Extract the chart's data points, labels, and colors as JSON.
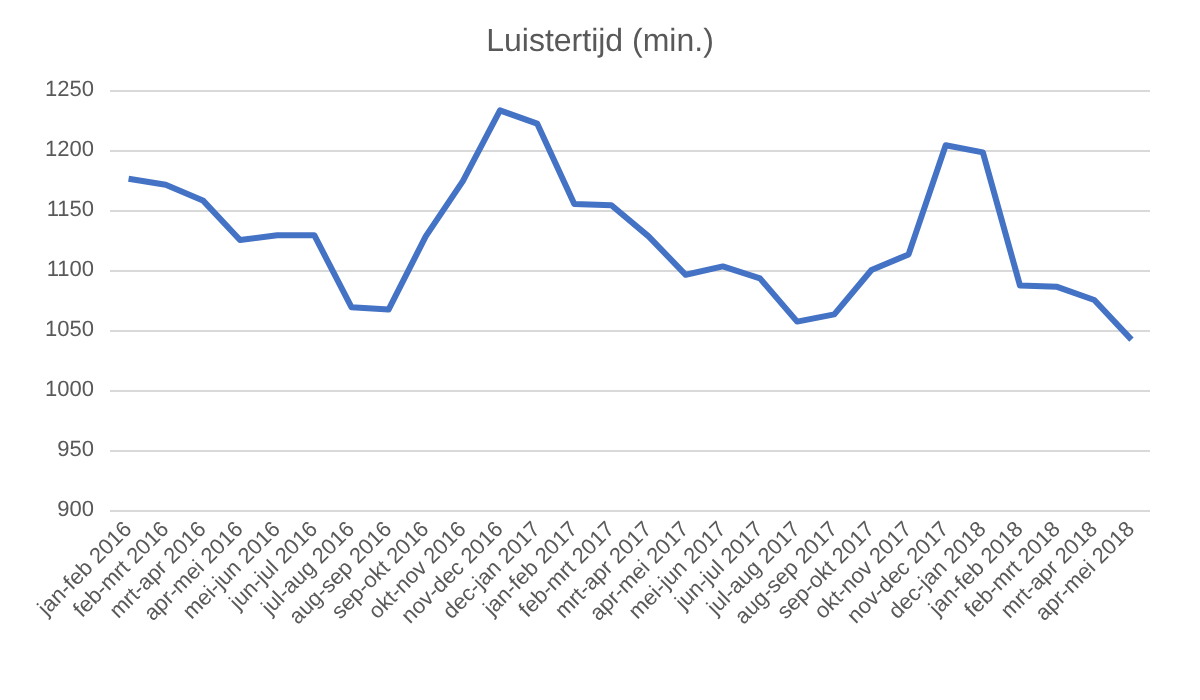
{
  "chart_data": {
    "type": "line",
    "title": "Luistertijd (min.)",
    "categories": [
      "jan-feb 2016",
      "feb-mrt 2016",
      "mrt-apr 2016",
      "apr-mei 2016",
      "mei-jun 2016",
      "jun-jul 2016",
      "jul-aug 2016",
      "aug-sep 2016",
      "sep-okt 2016",
      "okt-nov 2016",
      "nov-dec 2016",
      "dec-jan 2017",
      "jan-feb 2017",
      "feb-mrt 2017",
      "mrt-apr 2017",
      "apr-mei 2017",
      "mei-jun 2017",
      "jun-jul 2017",
      "jul-aug 2017",
      "aug-sep 2017",
      "sep-okt 2017",
      "okt-nov 2017",
      "nov-dec 2017",
      "dec-jan 2018",
      "jan-feb 2018",
      "feb-mrt 2018",
      "mrt-apr 2018",
      "apr-mei 2018"
    ],
    "series": [
      {
        "color": "#4472c4",
        "values": [
          1176,
          1171,
          1158,
          1125,
          1129,
          1129,
          1069,
          1067,
          1128,
          1174,
          1233,
          1222,
          1155,
          1154,
          1128,
          1096,
          1103,
          1093,
          1057,
          1063,
          1100,
          1113,
          1204,
          1198,
          1087,
          1086,
          1075,
          1042
        ]
      }
    ],
    "ylim": [
      900,
      1250
    ],
    "yticks": [
      900,
      950,
      1000,
      1050,
      1100,
      1150,
      1200,
      1250
    ],
    "grid": "y",
    "marker": "none",
    "line_style": "solid"
  }
}
